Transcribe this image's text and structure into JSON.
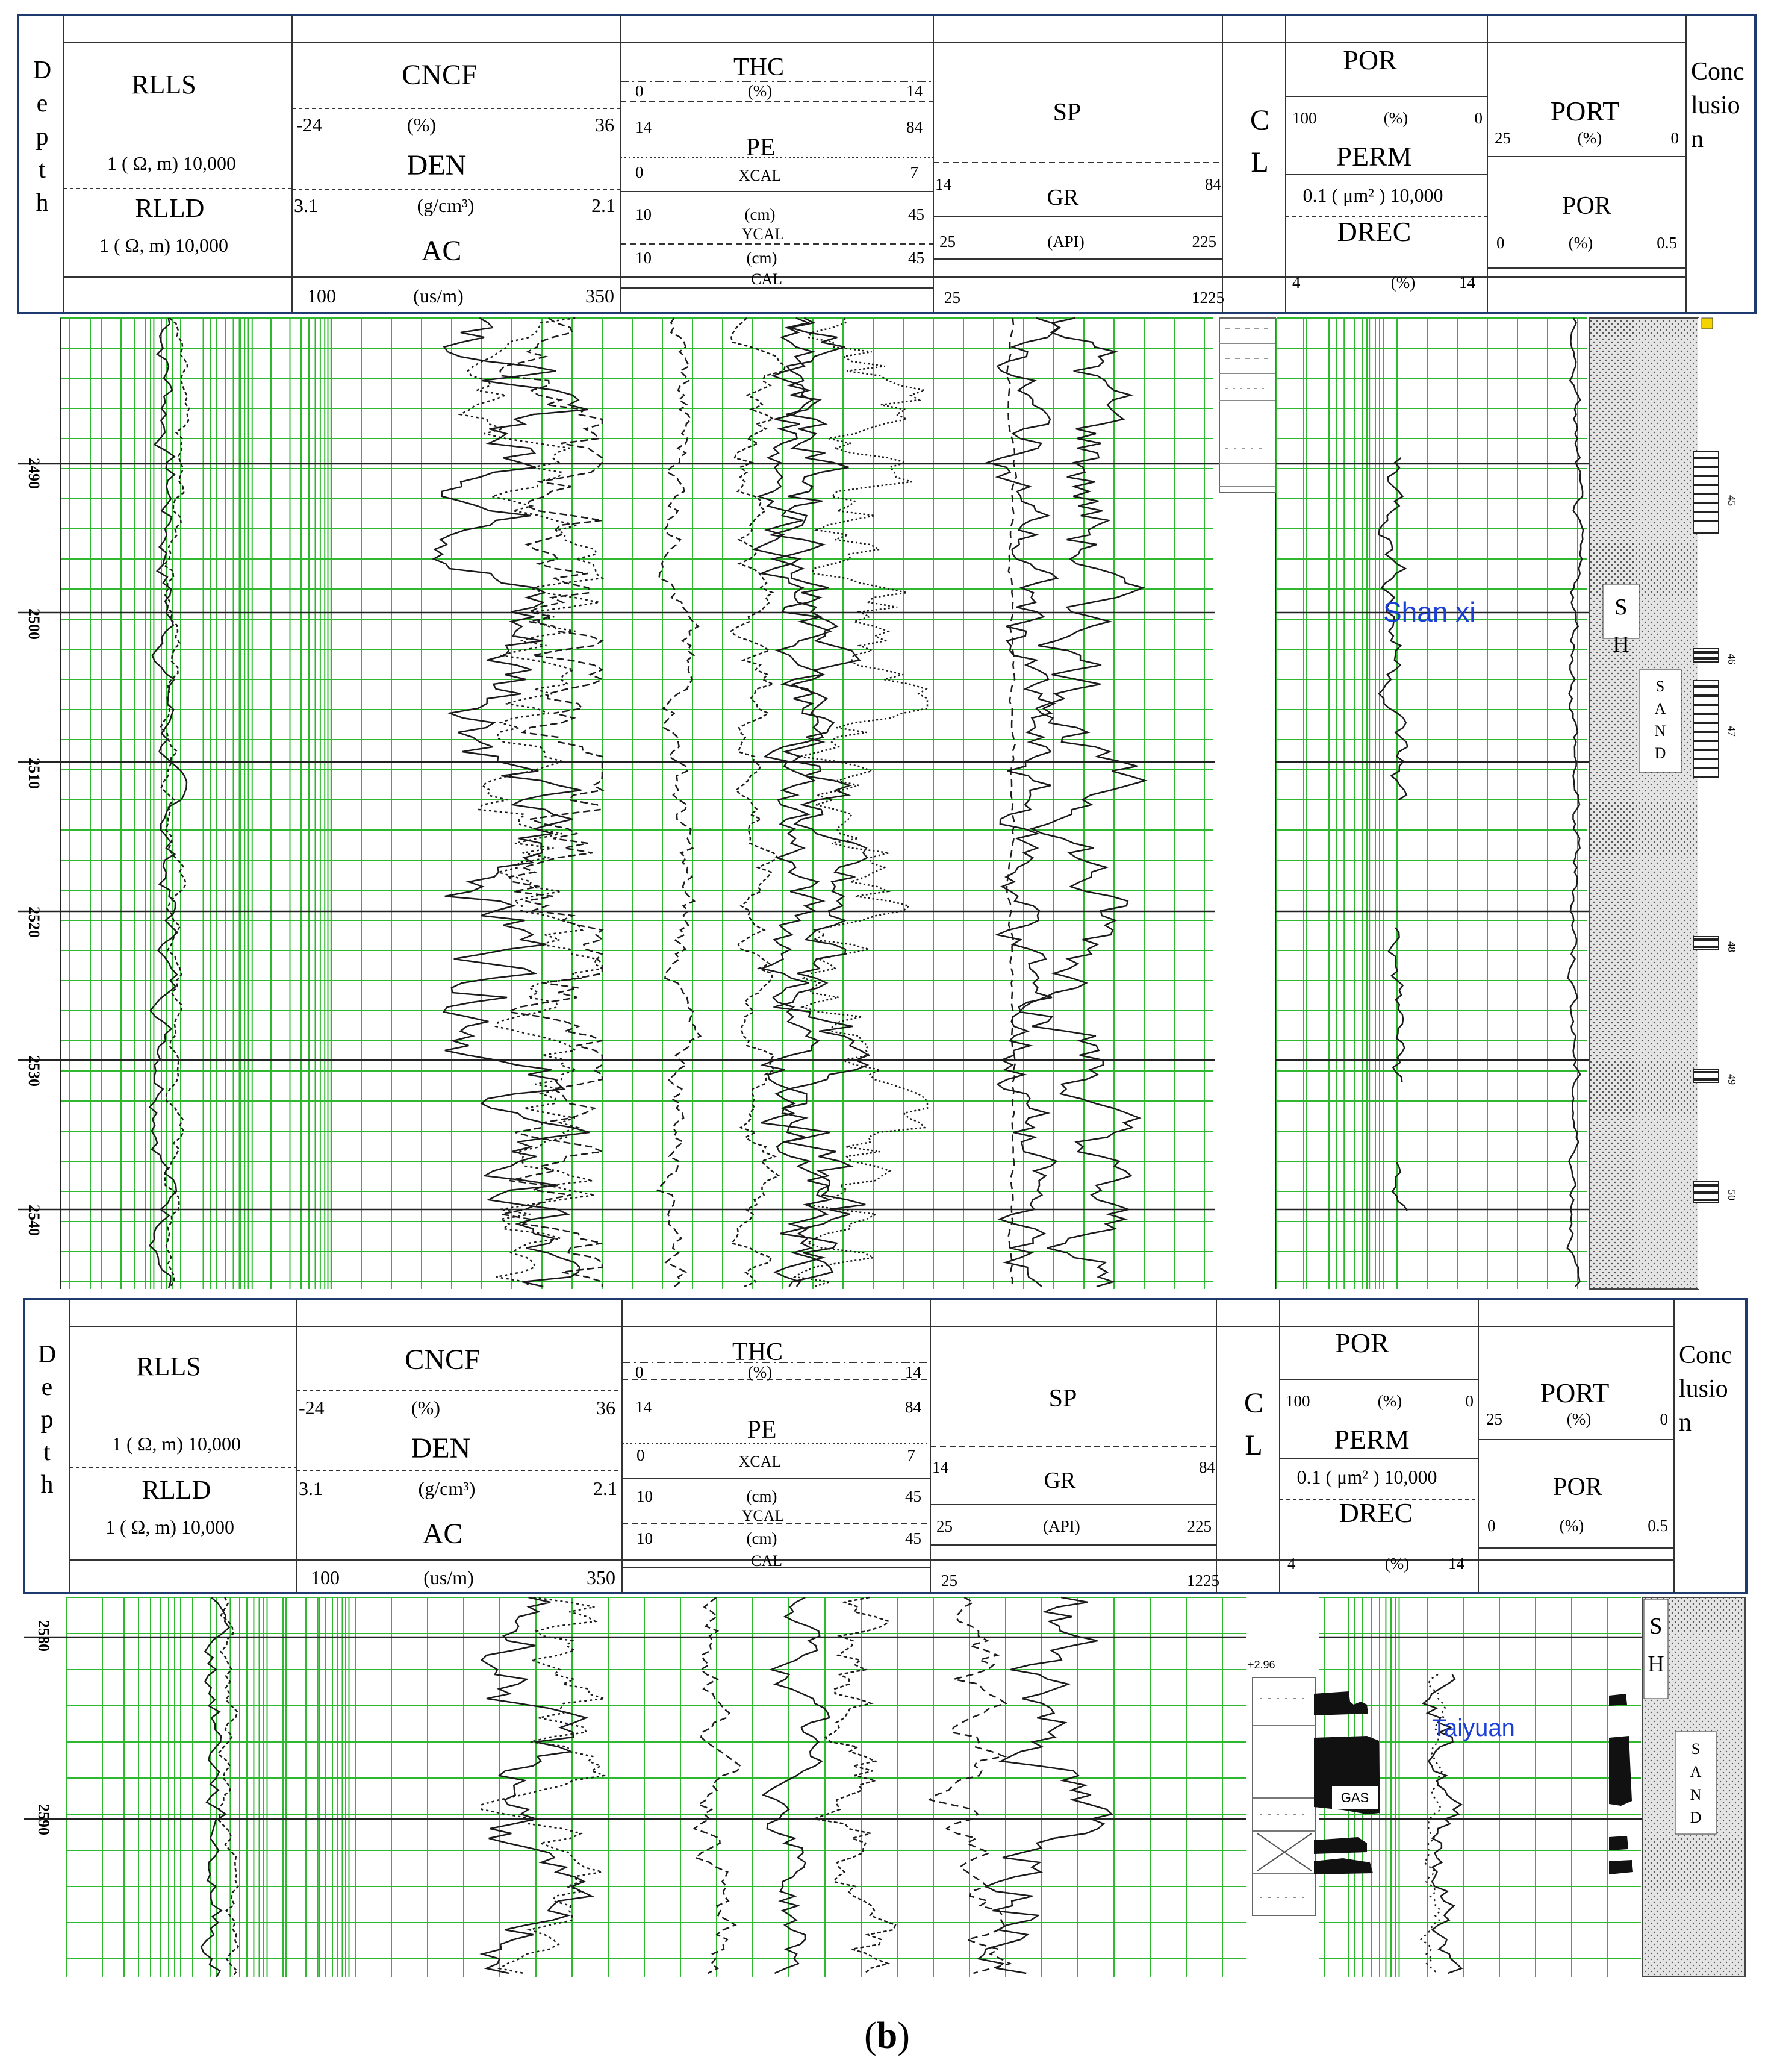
{
  "headers": {
    "depth_letters": [
      "D",
      "e",
      "p",
      "t",
      "h"
    ],
    "rlls": {
      "name": "RLLS",
      "scale": "1 ( Ω, m) 10,000"
    },
    "rlld": {
      "name": "RLLD",
      "scale": "1 ( Ω, m) 10,000"
    },
    "cncf": {
      "name": "CNCF",
      "min": "-24",
      "unit": "(%)",
      "max": "36"
    },
    "den": {
      "name": "DEN",
      "min": "3.1",
      "unit": "(g/cm³)",
      "max": "2.1"
    },
    "ac": {
      "name": "AC",
      "min": "100",
      "unit": "(us/m)",
      "max": "350"
    },
    "thc": {
      "name": "THC",
      "min": "0",
      "unit": "(%)",
      "max": "14"
    },
    "pe": {
      "name": "PE",
      "min": "14",
      "max": "84"
    },
    "xcal": {
      "name": "XCAL",
      "min": "0",
      "max": "7"
    },
    "ycal": {
      "name": "YCAL",
      "min": "10",
      "unit": "(cm)",
      "max": "45"
    },
    "cal": {
      "name": "CAL",
      "min": "10",
      "unit": "(cm)",
      "max": "45"
    },
    "sp": {
      "name": "SP",
      "min": "14",
      "max": "84"
    },
    "gr": {
      "name": "GR",
      "min": "25",
      "unit": "(API)",
      "max": "225"
    },
    "sp_bottom": {
      "min": "25",
      "max": "1225"
    },
    "cl_letters": [
      "C",
      "L"
    ],
    "por": {
      "name": "POR",
      "min": "100",
      "unit": "(%)",
      "max": "0"
    },
    "perm": {
      "name": "PERM",
      "scale": "0.1 ( μm² ) 10,000"
    },
    "drec": {
      "name": "DREC",
      "min": "4",
      "unit": "(%)",
      "max": "14"
    },
    "port": {
      "name": "PORT",
      "min": "25",
      "unit": "(%)",
      "max": "0"
    },
    "por2": {
      "name": "POR",
      "min": "0",
      "unit": "(%)",
      "max": "0.5"
    },
    "conclusion": [
      "Conc",
      "lusio",
      "n"
    ]
  },
  "panel1": {
    "depth_ticks": [
      "2490",
      "2500",
      "2510",
      "2520",
      "2530",
      "2540"
    ],
    "formation": "Shan xi",
    "lith_labels": {
      "sh": [
        "S",
        "H"
      ],
      "sand": [
        "S",
        "A",
        "N",
        "D"
      ]
    },
    "conclusion_numbers": [
      "45",
      "46",
      "47",
      "48",
      "49",
      "50"
    ]
  },
  "panel2": {
    "depth_ticks": [
      "2580",
      "2590"
    ],
    "formation": "Taiyuan",
    "gas_label": "GAS",
    "cl_value": "+2.96",
    "lith_labels": {
      "sh": [
        "S",
        "H"
      ],
      "sand": [
        "S",
        "A",
        "N",
        "D"
      ]
    }
  },
  "caption": {
    "open": "(",
    "letter": "b",
    "close": ")"
  },
  "colors": {
    "grid": "#2fb82f",
    "border": "#1f3a6e",
    "curve": "#1a1a1a",
    "formation": "#1a3fd6"
  }
}
